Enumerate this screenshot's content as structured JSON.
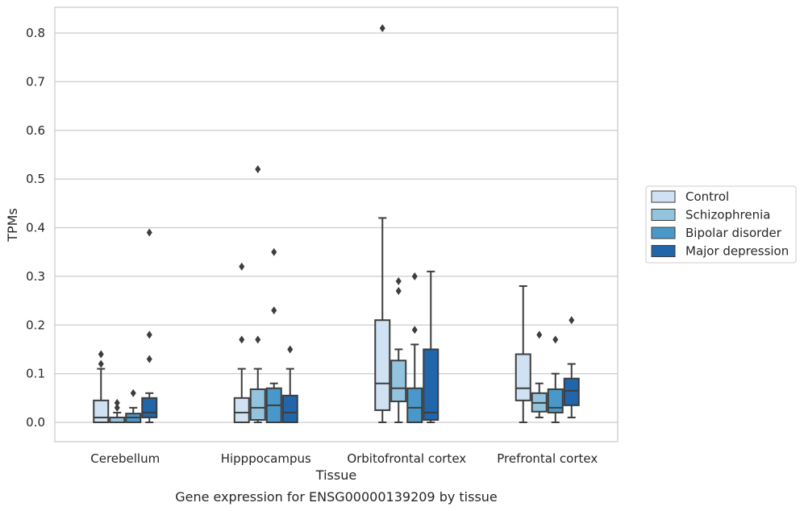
{
  "chart_data": {
    "type": "box",
    "xlabel": "Tissue",
    "ylabel": "TPMs",
    "caption": "Gene expression for ENSG00000139209 by tissue",
    "ylim": [
      -0.04,
      0.85
    ],
    "yticks": [
      0.0,
      0.1,
      0.2,
      0.3,
      0.4,
      0.5,
      0.6,
      0.7,
      0.8
    ],
    "ytick_labels": [
      "0.0",
      "0.1",
      "0.2",
      "0.3",
      "0.4",
      "0.5",
      "0.6",
      "0.7",
      "0.8"
    ],
    "grid": true,
    "legend_position": "right",
    "categories": [
      "Cerebellum",
      "Hipppocampus",
      "Orbitofrontal cortex",
      "Prefrontal cortex"
    ],
    "series": [
      {
        "name": "Control",
        "color": "#cfe1f2",
        "boxes": [
          {
            "whislo": 0.0,
            "q1": 0.0,
            "med": 0.01,
            "q3": 0.045,
            "whishi": 0.11,
            "fliers": [
              0.12,
              0.14
            ]
          },
          {
            "whislo": 0.0,
            "q1": 0.0,
            "med": 0.02,
            "q3": 0.05,
            "whishi": 0.11,
            "fliers": [
              0.17,
              0.32
            ]
          },
          {
            "whislo": 0.0,
            "q1": 0.025,
            "med": 0.08,
            "q3": 0.21,
            "whishi": 0.42,
            "fliers": [
              0.81
            ]
          },
          {
            "whislo": 0.0,
            "q1": 0.045,
            "med": 0.07,
            "q3": 0.14,
            "whishi": 0.28,
            "fliers": []
          }
        ]
      },
      {
        "name": "Schizophrenia",
        "color": "#93c4de",
        "boxes": [
          {
            "whislo": 0.0,
            "q1": 0.0,
            "med": 0.01,
            "q3": 0.01,
            "whishi": 0.02,
            "fliers": [
              0.03,
              0.04
            ]
          },
          {
            "whislo": 0.0,
            "q1": 0.005,
            "med": 0.03,
            "q3": 0.068,
            "whishi": 0.11,
            "fliers": [
              0.17,
              0.52
            ]
          },
          {
            "whislo": 0.0,
            "q1": 0.043,
            "med": 0.07,
            "q3": 0.127,
            "whishi": 0.15,
            "fliers": [
              0.27,
              0.29
            ]
          },
          {
            "whislo": 0.01,
            "q1": 0.022,
            "med": 0.04,
            "q3": 0.06,
            "whishi": 0.08,
            "fliers": [
              0.18
            ]
          }
        ]
      },
      {
        "name": "Bipolar disorder",
        "color": "#4a98c9",
        "boxes": [
          {
            "whislo": 0.0,
            "q1": 0.0,
            "med": 0.01,
            "q3": 0.018,
            "whishi": 0.03,
            "fliers": [
              0.06
            ]
          },
          {
            "whislo": 0.0,
            "q1": 0.0,
            "med": 0.035,
            "q3": 0.07,
            "whishi": 0.08,
            "fliers": [
              0.23,
              0.35
            ]
          },
          {
            "whislo": 0.0,
            "q1": 0.0,
            "med": 0.03,
            "q3": 0.07,
            "whishi": 0.16,
            "fliers": [
              0.19,
              0.3
            ]
          },
          {
            "whislo": 0.0,
            "q1": 0.02,
            "med": 0.03,
            "q3": 0.068,
            "whishi": 0.1,
            "fliers": [
              0.17
            ]
          }
        ]
      },
      {
        "name": "Major depression",
        "color": "#2165ab",
        "boxes": [
          {
            "whislo": 0.0,
            "q1": 0.01,
            "med": 0.02,
            "q3": 0.05,
            "whishi": 0.06,
            "fliers": [
              0.13,
              0.18,
              0.39
            ]
          },
          {
            "whislo": 0.0,
            "q1": 0.0,
            "med": 0.02,
            "q3": 0.055,
            "whishi": 0.11,
            "fliers": [
              0.15
            ]
          },
          {
            "whislo": 0.0,
            "q1": 0.005,
            "med": 0.02,
            "q3": 0.15,
            "whishi": 0.31,
            "fliers": []
          },
          {
            "whislo": 0.01,
            "q1": 0.035,
            "med": 0.065,
            "q3": 0.09,
            "whishi": 0.12,
            "fliers": [
              0.21
            ]
          }
        ]
      }
    ]
  }
}
